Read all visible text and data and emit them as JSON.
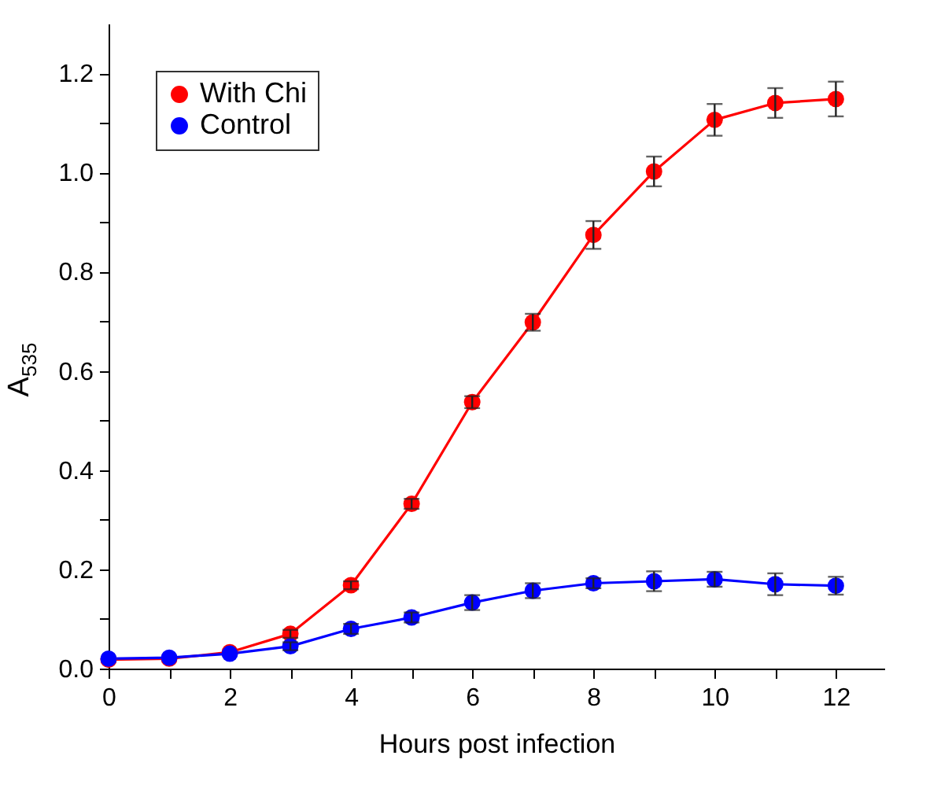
{
  "chart_data": {
    "type": "line",
    "xlabel": "Hours post infection",
    "ylabel": "A$_{535}$",
    "x": [
      0,
      1,
      2,
      3,
      4,
      5,
      6,
      7,
      8,
      9,
      10,
      11,
      12
    ],
    "series": [
      {
        "name": "With Chi",
        "color": "#ff0000",
        "values": [
          0.018,
          0.02,
          0.033,
          0.07,
          0.168,
          0.332,
          0.537,
          0.698,
          0.874,
          1.002,
          1.106,
          1.14,
          1.148
        ],
        "errors": [
          null,
          null,
          null,
          0.008,
          0.008,
          0.01,
          0.012,
          0.017,
          0.028,
          0.03,
          0.032,
          0.03,
          0.035
        ]
      },
      {
        "name": "Control",
        "color": "#0000ff",
        "values": [
          0.02,
          0.022,
          0.03,
          0.045,
          0.08,
          0.103,
          0.133,
          0.157,
          0.172,
          0.176,
          0.18,
          0.17,
          0.167
        ],
        "errors": [
          null,
          null,
          null,
          0.008,
          0.01,
          0.01,
          0.015,
          0.015,
          0.01,
          0.02,
          0.015,
          0.022,
          0.018
        ]
      }
    ],
    "xlim": [
      0,
      12.8
    ],
    "xticks": [
      0,
      {
        "value": 1,
        "label": null
      },
      2,
      {
        "value": 3,
        "label": null
      },
      4,
      {
        "value": 5,
        "label": null
      },
      6,
      {
        "value": 7,
        "label": null
      },
      8,
      {
        "value": 9,
        "label": null
      },
      10,
      {
        "value": 11,
        "label": null
      },
      12
    ],
    "ylim": [
      0,
      1.3
    ],
    "yticks": [
      {
        "value": 0,
        "label": "0.0"
      },
      {
        "value": 0.1,
        "label": null
      },
      0.2,
      {
        "value": 0.3,
        "label": null
      },
      0.4,
      {
        "value": 0.5,
        "label": null
      },
      0.6,
      {
        "value": 0.7,
        "label": null
      },
      0.8,
      {
        "value": 0.9,
        "label": null
      },
      {
        "value": 1,
        "label": "1.0"
      },
      {
        "value": 1.1,
        "label": null
      },
      1.2
    ],
    "legend": "top left",
    "marker": "circle",
    "line_style": "solid",
    "grid": false
  }
}
